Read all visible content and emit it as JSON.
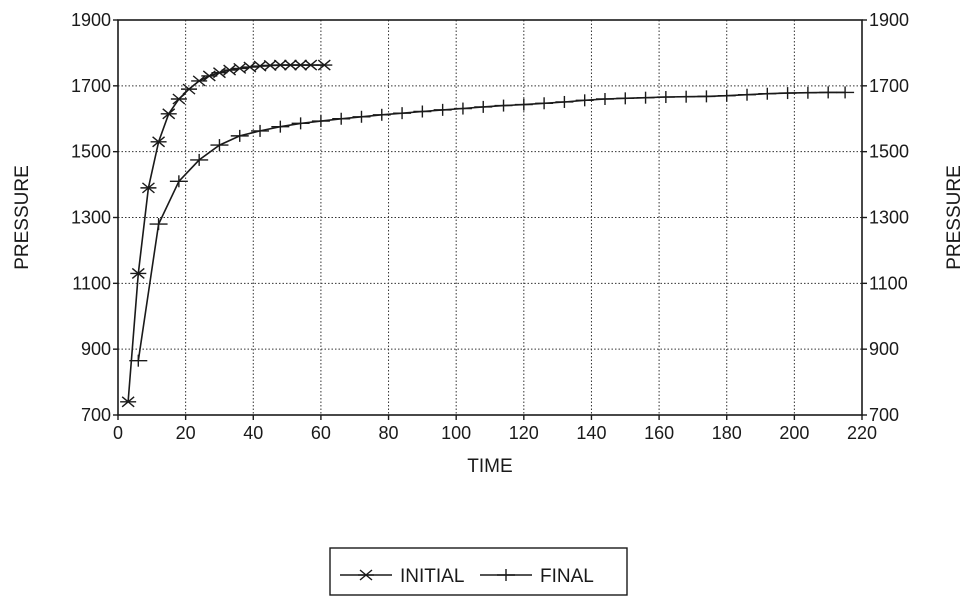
{
  "chart_data": {
    "type": "line",
    "xlabel": "TIME",
    "ylabel_left": "PRESSURE",
    "ylabel_right": "PRESSURE",
    "xlim": [
      0,
      220
    ],
    "ylim": [
      700,
      1900
    ],
    "x_ticks": [
      0,
      20,
      40,
      60,
      80,
      100,
      120,
      140,
      160,
      180,
      200,
      220
    ],
    "y_ticks": [
      700,
      900,
      1100,
      1300,
      1500,
      1700,
      1900
    ],
    "grid": true,
    "legend_position": "bottom-center",
    "series": [
      {
        "name": "INITIAL",
        "marker": "asterisk",
        "points": [
          [
            3,
            740
          ],
          [
            6,
            1130
          ],
          [
            9,
            1390
          ],
          [
            12,
            1530
          ],
          [
            15,
            1615
          ],
          [
            18,
            1660
          ],
          [
            21,
            1690
          ],
          [
            24,
            1715
          ],
          [
            27,
            1730
          ],
          [
            30,
            1740
          ],
          [
            33,
            1748
          ],
          [
            36,
            1753
          ],
          [
            39,
            1757
          ],
          [
            42,
            1760
          ],
          [
            45,
            1762
          ],
          [
            48,
            1763
          ],
          [
            51,
            1763
          ],
          [
            54,
            1763
          ],
          [
            57,
            1763
          ],
          [
            61,
            1763
          ]
        ]
      },
      {
        "name": "FINAL",
        "marker": "plus",
        "points": [
          [
            6,
            865
          ],
          [
            12,
            1280
          ],
          [
            18,
            1410
          ],
          [
            24,
            1475
          ],
          [
            30,
            1520
          ],
          [
            36,
            1548
          ],
          [
            42,
            1563
          ],
          [
            48,
            1576
          ],
          [
            54,
            1586
          ],
          [
            60,
            1593
          ],
          [
            66,
            1600
          ],
          [
            72,
            1606
          ],
          [
            78,
            1612
          ],
          [
            84,
            1617
          ],
          [
            90,
            1622
          ],
          [
            96,
            1627
          ],
          [
            102,
            1631
          ],
          [
            108,
            1636
          ],
          [
            114,
            1640
          ],
          [
            120,
            1643
          ],
          [
            126,
            1647
          ],
          [
            132,
            1651
          ],
          [
            138,
            1656
          ],
          [
            144,
            1660
          ],
          [
            150,
            1662
          ],
          [
            156,
            1664
          ],
          [
            162,
            1666
          ],
          [
            168,
            1667
          ],
          [
            174,
            1668
          ],
          [
            180,
            1670
          ],
          [
            186,
            1673
          ],
          [
            192,
            1676
          ],
          [
            198,
            1678
          ],
          [
            204,
            1679
          ],
          [
            210,
            1680
          ],
          [
            215,
            1680
          ]
        ]
      }
    ]
  }
}
